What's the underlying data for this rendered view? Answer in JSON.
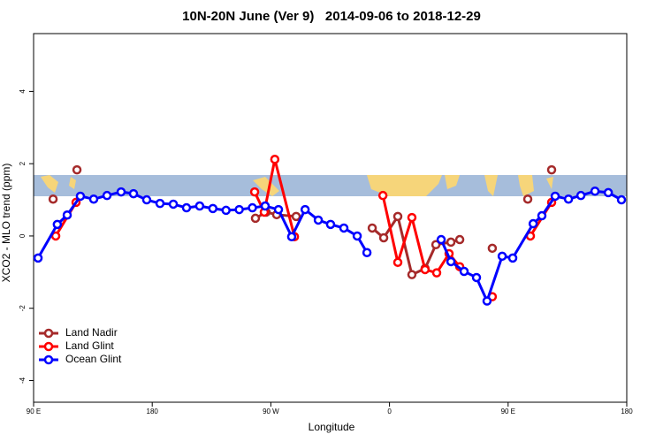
{
  "chart_data": {
    "type": "line",
    "title": "10N-20N June (Ver 9)   2014-09-06 to 2018-12-29",
    "xlabel": "Longitude",
    "ylabel": "XCO2 - MLO trend (ppm)",
    "xlim": [
      90,
      540
    ],
    "ylim": [
      -4.6,
      5.6
    ],
    "xticks": [
      {
        "value": 90,
        "label": "90 E"
      },
      180,
      {
        "value": 270,
        "label": "90 W"
      },
      {
        "value": 360,
        "label": "0"
      },
      {
        "value": 450,
        "label": "90 E"
      },
      {
        "value": 540,
        "label": "180"
      }
    ],
    "yticks": [
      -4,
      -2,
      0,
      2,
      4
    ],
    "legend": "bottom-left",
    "series": [
      {
        "name": "Land Nadir",
        "color": "#a52a2a",
        "x": [
          104.8,
          null,
          122.9,
          null,
          258.3,
          266.4,
          274.4,
          289.2,
          null,
          346.9,
          355.6,
          366.3,
          377,
          387,
          395.2,
          406.6,
          413.3,
          null,
          438,
          null,
          464.9,
          null,
          483
        ],
        "values": [
          1.02,
          null,
          1.83,
          null,
          0.49,
          0.66,
          0.59,
          0.54,
          null,
          0.22,
          -0.05,
          0.54,
          -1.07,
          -0.9,
          -0.24,
          -0.17,
          -0.1,
          null,
          -0.34,
          null,
          1.02,
          null,
          1.83
        ]
      },
      {
        "name": "Land Glint",
        "color": "#ff0000",
        "x": [
          106.8,
          122.2,
          null,
          257.7,
          265,
          273,
          287.9,
          null,
          355,
          366.3,
          377,
          387,
          395.8,
          405.2,
          413.3,
          null,
          438,
          null,
          466.9,
          483
        ],
        "values": [
          0,
          0.93,
          null,
          1.22,
          0.66,
          2.12,
          -0.02,
          null,
          1.12,
          -0.73,
          0.51,
          -0.93,
          -1.02,
          -0.49,
          -0.85,
          null,
          -1.68,
          null,
          0,
          0.93
        ]
      },
      {
        "name": "Ocean Glint",
        "color": "#0000ff",
        "x": [
          93.4,
          108,
          115.5,
          125.5,
          135.6,
          145.7,
          156.4,
          165.8,
          175.8,
          185.9,
          196,
          206,
          216,
          226,
          236,
          246,
          256,
          265.7,
          275.8,
          285.8,
          296,
          306,
          315.3,
          325.4,
          335.5,
          342.9,
          null,
          399.2,
          406.6,
          416.6,
          426,
          434,
          445.5,
          453.5,
          469,
          475.6,
          485.7,
          495.8,
          505.2,
          515.9,
          526,
          536
        ],
        "values": [
          -0.61,
          0.32,
          0.58,
          1.1,
          1.02,
          1.12,
          1.22,
          1.17,
          1.0,
          0.9,
          0.88,
          0.78,
          0.83,
          0.76,
          0.71,
          0.73,
          0.78,
          0.83,
          0.73,
          -0.02,
          0.73,
          0.44,
          0.32,
          0.22,
          0,
          -0.46,
          null,
          -0.1,
          -0.71,
          -0.98,
          -1.15,
          -1.8,
          -0.56,
          -0.61,
          0.34,
          0.56,
          1.1,
          1.02,
          1.12,
          1.24,
          1.2,
          1.0
        ]
      }
    ]
  }
}
